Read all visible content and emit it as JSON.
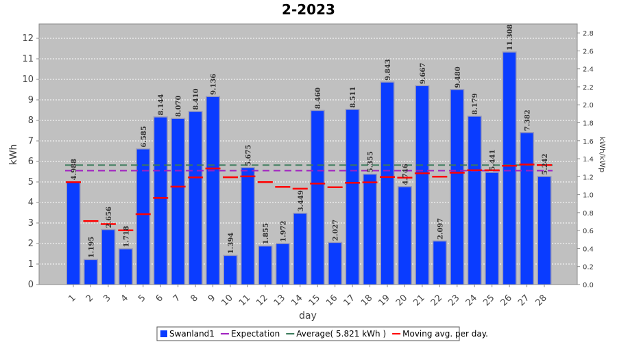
{
  "chart_data": {
    "type": "bar",
    "title": "2-2023",
    "xlabel": "day",
    "ylabel": "kWh",
    "y2label": "kWh/kWp",
    "ylim": [
      0,
      12.7
    ],
    "y2lim": [
      0,
      2.9
    ],
    "yticks": [
      0,
      1,
      2,
      3,
      4,
      5,
      6,
      7,
      8,
      9,
      10,
      11,
      12
    ],
    "y2ticks": [
      "0.0",
      "0.2",
      "0.4",
      "0.6",
      "0.8",
      "1.0",
      "1.2",
      "1.4",
      "1.6",
      "1.8",
      "2.0",
      "2.2",
      "2.4",
      "2.6",
      "2.8"
    ],
    "categories": [
      "1",
      "2",
      "3",
      "4",
      "5",
      "6",
      "7",
      "8",
      "9",
      "10",
      "11",
      "12",
      "13",
      "14",
      "15",
      "16",
      "17",
      "18",
      "19",
      "20",
      "21",
      "22",
      "23",
      "24",
      "25",
      "26",
      "27",
      "28"
    ],
    "series": [
      {
        "name": "Swanland1",
        "type": "bar",
        "color": "#0a3cff",
        "values": [
          4.988,
          1.195,
          2.656,
          1.718,
          6.585,
          8.144,
          8.07,
          8.41,
          9.136,
          1.394,
          5.675,
          1.855,
          1.972,
          3.449,
          8.46,
          2.027,
          8.511,
          5.355,
          9.843,
          4.746,
          9.667,
          2.097,
          9.48,
          8.179,
          5.441,
          11.308,
          7.382,
          5.242
        ],
        "labels": [
          "4.988",
          "1.195",
          "2.656",
          "1.718",
          "6.585",
          "8.144",
          "8.070",
          "8.410",
          "9.136",
          "1.394",
          "5.675",
          "1.855",
          "1.972",
          "3.449",
          "8.460",
          "2.027",
          "8.511",
          "5.355",
          "9.843",
          "4.746",
          "9.667",
          "2.097",
          "9.480",
          "8.179",
          "5.441",
          "11.308",
          "7.382",
          "5.242"
        ]
      },
      {
        "name": "Moving avg. per day.",
        "type": "marker",
        "color": "#ff0000",
        "values": [
          4.988,
          3.09,
          2.95,
          2.64,
          3.43,
          4.22,
          4.77,
          5.22,
          5.66,
          5.23,
          5.27,
          4.99,
          4.76,
          4.67,
          4.92,
          4.74,
          4.96,
          4.98,
          5.24,
          5.21,
          5.42,
          5.26,
          5.45,
          5.57,
          5.57,
          5.79,
          5.85,
          5.82
        ]
      }
    ],
    "reference_lines": [
      {
        "name": "Expectation",
        "value": 5.55,
        "color": "#a020c0",
        "style": "dashed"
      },
      {
        "name": "Average( 5.821 kWh )",
        "value": 5.821,
        "color": "#3a7a5a",
        "style": "dashed"
      }
    ],
    "legend_position": "bottom",
    "grid": true
  }
}
